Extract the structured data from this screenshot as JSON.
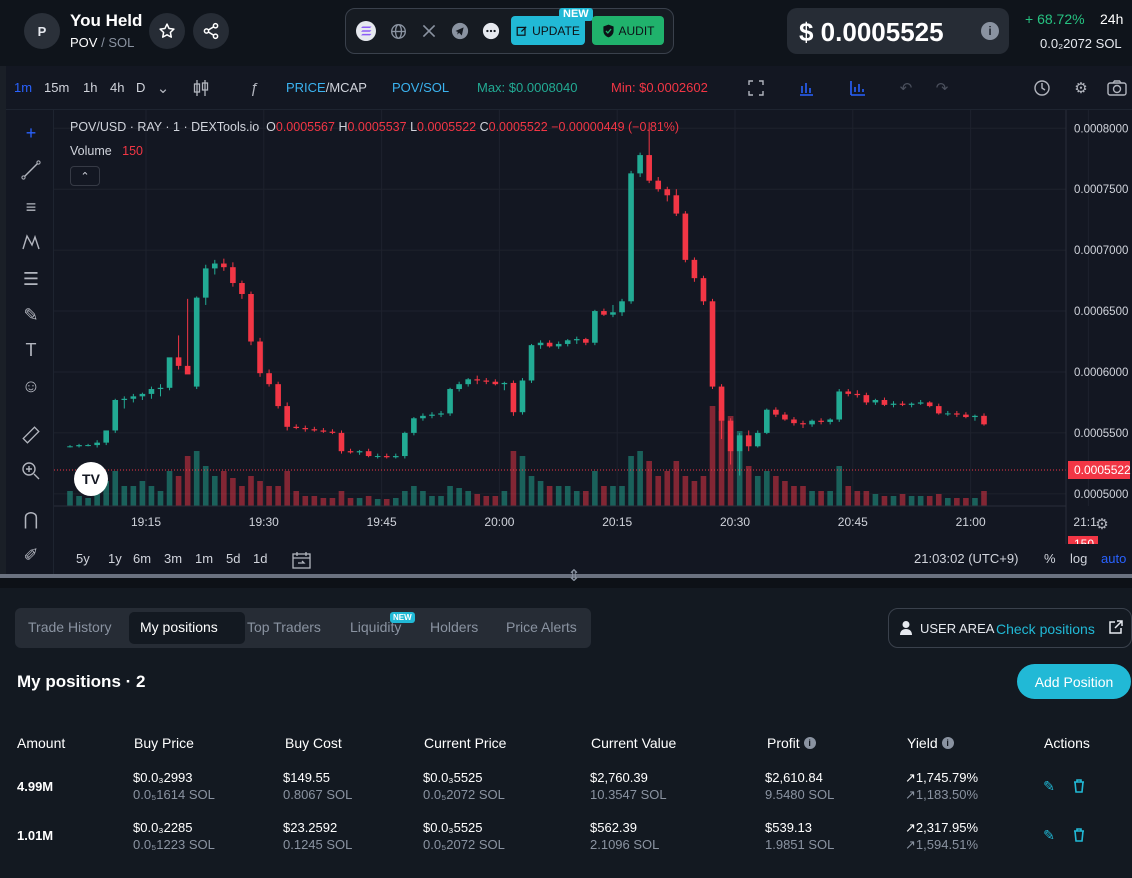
{
  "header": {
    "avatar_letter": "P",
    "token_name": "You Held",
    "pair_base": "POV",
    "pair_sep": "/",
    "pair_quote": "SOL",
    "update_label": "UPDATE",
    "update_badge": "NEW",
    "audit_label": "AUDIT",
    "price": "$ 0.0005525",
    "price_info_icon": "i",
    "change": "+ 68.72%",
    "period": "24h",
    "sol_price": "0.0₂2072  SOL",
    "colors": {
      "positive": "#26c281",
      "accent": "#21b9d6",
      "audit": "#20b26c"
    }
  },
  "toolbar": {
    "timeframes": [
      "1m",
      "15m",
      "1h",
      "4h",
      "D"
    ],
    "active_timeframe": "1m",
    "price_mcap_a": "PRICE",
    "price_mcap_b": "/MCAP",
    "pair_toggle": "POV/SOL",
    "max_label": "Max: $0.0008040",
    "min_label": "Min: $0.0002602"
  },
  "chart": {
    "legend": {
      "symbol": "POV/USD · RAY · 1 · DEXTools.io",
      "o_label": "O",
      "o_value": "0.0005567",
      "h_label": "H",
      "h_value": "0.0005537",
      "l_label": "L",
      "l_value": "0.0005522",
      "c_label": "C",
      "c_value": "0.0005522",
      "change": "−0.00000449 (−0.81%)"
    },
    "volume_label": "Volume",
    "volume_value": "150",
    "current_price_tag": "0.0005522",
    "current_volume_tag": "150",
    "timezone": "21:03:02 (UTC+9)",
    "ranges": [
      "5y",
      "1y",
      "6m",
      "3m",
      "1m",
      "5d",
      "1d"
    ],
    "percent_label": "%",
    "log_label": "log",
    "auto_label": "auto",
    "tv_logo": "TV"
  },
  "chart_data": {
    "type": "candlestick",
    "title": "POV/USD · RAY · 1 · DEXTools.io",
    "x_tick_labels": [
      "19:15",
      "19:30",
      "19:45",
      "20:00",
      "20:15",
      "20:30",
      "20:45",
      "21:00",
      "21:1"
    ],
    "y_tick_labels": [
      "0.0005000",
      "0.0005500",
      "0.0006000",
      "0.0006500",
      "0.0007000",
      "0.0007500",
      "0.0008000"
    ],
    "ylim": [
      0.00049,
      0.000815
    ],
    "grid": true,
    "colors": {
      "up": "#22ab94",
      "down": "#f23645"
    },
    "candles_ohlc": [
      [
        0.000539,
        0.00054,
        0.000538,
        0.000539
      ],
      [
        0.000539,
        0.000541,
        0.000538,
        0.00054
      ],
      [
        0.00054,
        0.000541,
        0.000539,
        0.00054
      ],
      [
        0.00054,
        0.000544,
        0.000538,
        0.000542
      ],
      [
        0.000542,
        0.000552,
        0.00054,
        0.000552
      ],
      [
        0.000552,
        0.000578,
        0.00055,
        0.000577
      ],
      [
        0.000577,
        0.00058,
        0.00057,
        0.000578
      ],
      [
        0.000578,
        0.000582,
        0.000575,
        0.00058
      ],
      [
        0.00058,
        0.000583,
        0.000577,
        0.000582
      ],
      [
        0.000582,
        0.000588,
        0.000578,
        0.000586
      ],
      [
        0.000586,
        0.00059,
        0.00058,
        0.000587
      ],
      [
        0.000587,
        0.0006,
        0.000585,
        0.000612
      ],
      [
        0.000612,
        0.00063,
        0.000602,
        0.000605
      ],
      [
        0.000605,
        0.00066,
        0.0006,
        0.000598
      ],
      [
        0.000588,
        0.000662,
        0.000586,
        0.000661
      ],
      [
        0.000661,
        0.000688,
        0.000655,
        0.000685
      ],
      [
        0.000685,
        0.000692,
        0.00068,
        0.000689
      ],
      [
        0.000689,
        0.000693,
        0.000683,
        0.000686
      ],
      [
        0.000686,
        0.00069,
        0.00067,
        0.000673
      ],
      [
        0.000673,
        0.000675,
        0.00066,
        0.000664
      ],
      [
        0.000664,
        0.000666,
        0.000622,
        0.000625
      ],
      [
        0.000625,
        0.000628,
        0.000596,
        0.000599
      ],
      [
        0.000599,
        0.000602,
        0.000588,
        0.00059
      ],
      [
        0.00059,
        0.000592,
        0.00057,
        0.000572
      ],
      [
        0.000572,
        0.000575,
        0.000552,
        0.000555
      ],
      [
        0.000555,
        0.000557,
        0.000553,
        0.000554
      ],
      [
        0.000554,
        0.000556,
        0.000551,
        0.000553
      ],
      [
        0.000553,
        0.000555,
        0.000551,
        0.000552
      ],
      [
        0.000552,
        0.000554,
        0.00055,
        0.000551
      ],
      [
        0.000551,
        0.000553,
        0.000549,
        0.00055
      ],
      [
        0.00055,
        0.000552,
        0.000533,
        0.000535
      ],
      [
        0.000535,
        0.000537,
        0.000533,
        0.000534
      ],
      [
        0.000534,
        0.000536,
        0.000532,
        0.000535
      ],
      [
        0.000535,
        0.000537,
        0.00053,
        0.000531
      ],
      [
        0.000531,
        0.000533,
        0.000529,
        0.000531
      ],
      [
        0.000531,
        0.000533,
        0.000529,
        0.00053
      ],
      [
        0.00053,
        0.000533,
        0.000529,
        0.000531
      ],
      [
        0.000531,
        0.000551,
        0.000529,
        0.00055
      ],
      [
        0.00055,
        0.000563,
        0.000548,
        0.000562
      ],
      [
        0.000562,
        0.000566,
        0.00056,
        0.000564
      ],
      [
        0.000564,
        0.000567,
        0.000562,
        0.000565
      ],
      [
        0.000565,
        0.000568,
        0.000563,
        0.000566
      ],
      [
        0.000566,
        0.000587,
        0.000564,
        0.000586
      ],
      [
        0.000586,
        0.000592,
        0.000584,
        0.00059
      ],
      [
        0.00059,
        0.000595,
        0.000588,
        0.000594
      ],
      [
        0.000594,
        0.000597,
        0.00059,
        0.000593
      ],
      [
        0.000593,
        0.000595,
        0.00059,
        0.000592
      ],
      [
        0.000592,
        0.000594,
        0.000589,
        0.00059
      ],
      [
        0.00059,
        0.000592,
        0.000585,
        0.000591
      ],
      [
        0.000591,
        0.000593,
        0.000564,
        0.000567
      ],
      [
        0.000567,
        0.000595,
        0.000565,
        0.000593
      ],
      [
        0.000593,
        0.000623,
        0.000591,
        0.000622
      ],
      [
        0.000622,
        0.000626,
        0.000619,
        0.000624
      ],
      [
        0.000624,
        0.000626,
        0.00062,
        0.000621
      ],
      [
        0.000621,
        0.000625,
        0.000619,
        0.000623
      ],
      [
        0.000623,
        0.000627,
        0.000621,
        0.000626
      ],
      [
        0.000626,
        0.000629,
        0.000623,
        0.000627
      ],
      [
        0.000627,
        0.000628,
        0.000622,
        0.000624
      ],
      [
        0.000624,
        0.000651,
        0.000622,
        0.00065
      ],
      [
        0.00065,
        0.000652,
        0.000646,
        0.000647
      ],
      [
        0.000647,
        0.000655,
        0.000645,
        0.000649
      ],
      [
        0.000649,
        0.00066,
        0.000646,
        0.000658
      ],
      [
        0.000658,
        0.000765,
        0.000656,
        0.000763
      ],
      [
        0.000763,
        0.00078,
        0.00076,
        0.000778
      ],
      [
        0.000778,
        0.000805,
        0.000755,
        0.000757
      ],
      [
        0.000757,
        0.00076,
        0.000748,
        0.00075
      ],
      [
        0.00075,
        0.000752,
        0.00074,
        0.000745
      ],
      [
        0.000745,
        0.00075,
        0.000728,
        0.00073
      ],
      [
        0.00073,
        0.000732,
        0.00069,
        0.000692
      ],
      [
        0.000692,
        0.000694,
        0.000674,
        0.000677
      ],
      [
        0.000677,
        0.000679,
        0.000655,
        0.000658
      ],
      [
        0.000658,
        0.00066,
        0.000586,
        0.000588
      ],
      [
        0.000588,
        0.00059,
        0.000545,
        0.00056
      ],
      [
        0.00056,
        0.000562,
        0.000524,
        0.000535
      ],
      [
        0.000535,
        0.00055,
        0.000515,
        0.000548
      ],
      [
        0.000548,
        0.000552,
        0.000535,
        0.000539
      ],
      [
        0.000539,
        0.000552,
        0.000538,
        0.00055
      ],
      [
        0.00055,
        0.00057,
        0.000549,
        0.000569
      ],
      [
        0.000569,
        0.000571,
        0.000563,
        0.000565
      ],
      [
        0.000565,
        0.000567,
        0.00056,
        0.000561
      ],
      [
        0.000561,
        0.000563,
        0.000556,
        0.000558
      ],
      [
        0.000558,
        0.00056,
        0.000554,
        0.000557
      ],
      [
        0.000557,
        0.000561,
        0.000555,
        0.00056
      ],
      [
        0.00056,
        0.000562,
        0.000557,
        0.000559
      ],
      [
        0.000559,
        0.000562,
        0.000557,
        0.000561
      ],
      [
        0.000561,
        0.000586,
        0.000559,
        0.000584
      ],
      [
        0.000584,
        0.000586,
        0.00058,
        0.000582
      ],
      [
        0.000582,
        0.000585,
        0.000579,
        0.000581
      ],
      [
        0.000581,
        0.000583,
        0.000573,
        0.000575
      ],
      [
        0.000575,
        0.000578,
        0.000573,
        0.000577
      ],
      [
        0.000577,
        0.000579,
        0.000572,
        0.000573
      ],
      [
        0.000573,
        0.000576,
        0.000571,
        0.000574
      ],
      [
        0.000574,
        0.000576,
        0.000572,
        0.000573
      ],
      [
        0.000573,
        0.000575,
        0.000571,
        0.000574
      ],
      [
        0.000574,
        0.000577,
        0.000573,
        0.000575
      ],
      [
        0.000575,
        0.000576,
        0.000571,
        0.000572
      ],
      [
        0.000572,
        0.000574,
        0.000565,
        0.000566
      ],
      [
        0.000566,
        0.000568,
        0.000564,
        0.000566
      ],
      [
        0.000566,
        0.000568,
        0.000563,
        0.000565
      ],
      [
        0.000565,
        0.000567,
        0.000562,
        0.000563
      ],
      [
        0.000563,
        0.000565,
        0.00056,
        0.000564
      ],
      [
        0.000564,
        0.000566,
        0.000556,
        0.000557
      ]
    ],
    "volumes": [
      0.15,
      0.1,
      0.08,
      0.12,
      0.25,
      0.35,
      0.2,
      0.2,
      0.25,
      0.2,
      0.15,
      0.35,
      0.3,
      0.5,
      0.55,
      0.4,
      0.3,
      0.35,
      0.28,
      0.2,
      0.3,
      0.25,
      0.2,
      0.2,
      0.35,
      0.15,
      0.1,
      0.1,
      0.08,
      0.08,
      0.15,
      0.08,
      0.08,
      0.1,
      0.07,
      0.07,
      0.08,
      0.15,
      0.2,
      0.15,
      0.1,
      0.1,
      0.2,
      0.18,
      0.15,
      0.12,
      0.1,
      0.1,
      0.15,
      0.55,
      0.5,
      0.3,
      0.25,
      0.2,
      0.2,
      0.2,
      0.15,
      0.15,
      0.35,
      0.2,
      0.2,
      0.2,
      0.5,
      0.55,
      0.45,
      0.3,
      0.35,
      0.45,
      0.3,
      0.25,
      0.3,
      1.0,
      0.95,
      0.9,
      0.75,
      0.4,
      0.3,
      0.35,
      0.3,
      0.25,
      0.2,
      0.2,
      0.15,
      0.15,
      0.15,
      0.4,
      0.2,
      0.15,
      0.15,
      0.12,
      0.1,
      0.1,
      0.12,
      0.1,
      0.1,
      0.1,
      0.12,
      0.08,
      0.08,
      0.08,
      0.08,
      0.15
    ]
  },
  "panel": {
    "tabs": [
      "Trade History",
      "My positions",
      "Top Traders",
      "Liquidity",
      "Holders",
      "Price Alerts"
    ],
    "active_tab": "My positions",
    "liquidity_badge": "NEW",
    "user_area_label": "USER AREA",
    "user_area_link": "Check positions",
    "title": "My positions · 2",
    "add_button": "Add Position",
    "columns": [
      "Amount",
      "Buy Price",
      "Buy Cost",
      "Current Price",
      "Current Value",
      "Profit",
      "Yield",
      "Actions"
    ],
    "rows": [
      {
        "amount": "4.99M",
        "buy_price_usd": "$0.0₃2993",
        "buy_price_sol": "0.0₅1614 SOL",
        "buy_cost_usd": "$149.55",
        "buy_cost_sol": "0.8067 SOL",
        "current_price_usd": "$0.0₃5525",
        "current_price_sol": "0.0₅2072 SOL",
        "current_value_usd": "$2,760.39",
        "current_value_sol": "10.3547 SOL",
        "profit_usd": "$2,610.84",
        "profit_sol": "9.5480 SOL",
        "yield_usd": "1,745.79%",
        "yield_sol": "1,183.50%"
      },
      {
        "amount": "1.01M",
        "buy_price_usd": "$0.0₃2285",
        "buy_price_sol": "0.0₅1223 SOL",
        "buy_cost_usd": "$23.2592",
        "buy_cost_sol": "0.1245 SOL",
        "current_price_usd": "$0.0₃5525",
        "current_price_sol": "0.0₅2072 SOL",
        "current_value_usd": "$562.39",
        "current_value_sol": "2.1096 SOL",
        "profit_usd": "$539.13",
        "profit_sol": "1.9851 SOL",
        "yield_usd": "2,317.95%",
        "yield_sol": "1,594.51%"
      }
    ]
  }
}
